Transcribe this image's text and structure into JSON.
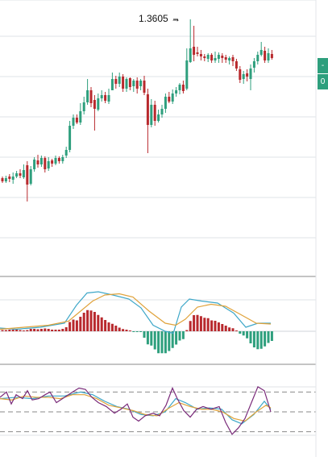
{
  "chart_data": {
    "type": "candlestick",
    "peak_annotation": "1.3605 →",
    "right_tags": [
      "-",
      "0"
    ],
    "colors": {
      "up": "#2e9f7d",
      "down": "#b8292d",
      "macd_line": "#3ea7c8",
      "signal_line": "#e0a23a",
      "stoch_k": "#7a2b7a",
      "stoch_d": "#e0a23a",
      "stoch_e": "#3ea7c8",
      "grid": "#dfe3e7",
      "level": "#8a8a8a"
    },
    "candles": [
      [
        221,
        225,
        219,
        227
      ],
      [
        225,
        221,
        218,
        227
      ],
      [
        219,
        222,
        216,
        226
      ],
      [
        223,
        219,
        214,
        228
      ],
      [
        219,
        215,
        212,
        221
      ],
      [
        215,
        218,
        210,
        221
      ],
      [
        220,
        211,
        204,
        222
      ],
      [
        205,
        229,
        200,
        250
      ],
      [
        228,
        210,
        206,
        230
      ],
      [
        210,
        198,
        195,
        213
      ],
      [
        199,
        204,
        192,
        208
      ],
      [
        204,
        196,
        193,
        207
      ],
      [
        196,
        210,
        194,
        214
      ],
      [
        209,
        200,
        195,
        212
      ],
      [
        199,
        203,
        197,
        207
      ],
      [
        203,
        196,
        193,
        205
      ],
      [
        196,
        200,
        194,
        203
      ],
      [
        200,
        195,
        192,
        203
      ],
      [
        193,
        186,
        182,
        196
      ],
      [
        186,
        156,
        150,
        189
      ],
      [
        156,
        146,
        142,
        160
      ],
      [
        146,
        152,
        142,
        154
      ],
      [
        152,
        138,
        128,
        155
      ],
      [
        138,
        127,
        120,
        142
      ],
      [
        127,
        112,
        98,
        130
      ],
      [
        112,
        128,
        108,
        133
      ],
      [
        124,
        135,
        118,
        162
      ],
      [
        136,
        122,
        116,
        138
      ],
      [
        122,
        118,
        112,
        126
      ],
      [
        118,
        125,
        114,
        128
      ],
      [
        126,
        118,
        110,
        129
      ],
      [
        112,
        98,
        90,
        112
      ],
      [
        98,
        104,
        94,
        110
      ],
      [
        104,
        95,
        90,
        108
      ],
      [
        95,
        110,
        92,
        114
      ],
      [
        110,
        98,
        96,
        114
      ],
      [
        97,
        108,
        96,
        112
      ],
      [
        107,
        100,
        98,
        114
      ],
      [
        100,
        110,
        96,
        116
      ],
      [
        107,
        100,
        98,
        112
      ],
      [
        100,
        115,
        94,
        118
      ],
      [
        117,
        155,
        110,
        190
      ],
      [
        155,
        130,
        123,
        158
      ],
      [
        130,
        150,
        125,
        156
      ],
      [
        150,
        142,
        136,
        152
      ],
      [
        142,
        135,
        130,
        146
      ],
      [
        135,
        120,
        116,
        140
      ],
      [
        120,
        126,
        114,
        128
      ],
      [
        126,
        116,
        111,
        129
      ],
      [
        116,
        112,
        108,
        120
      ],
      [
        112,
        105,
        103,
        117
      ],
      [
        105,
        113,
        100,
        116
      ],
      [
        110,
        75,
        60,
        112
      ],
      [
        77,
        60,
        24,
        78
      ],
      [
        58,
        68,
        32,
        76
      ],
      [
        65,
        67,
        58,
        70
      ],
      [
        67,
        70,
        62,
        75
      ],
      [
        70,
        72,
        67,
        76
      ],
      [
        73,
        68,
        66,
        77
      ],
      [
        68,
        75,
        66,
        78
      ],
      [
        75,
        72,
        64,
        78
      ],
      [
        73,
        68,
        65,
        78
      ],
      [
        69,
        72,
        66,
        78
      ],
      [
        71,
        74,
        68,
        78
      ],
      [
        75,
        72,
        70,
        80
      ],
      [
        71,
        76,
        68,
        82
      ],
      [
        76,
        85,
        73,
        88
      ],
      [
        86,
        99,
        82,
        103
      ],
      [
        98,
        92,
        88,
        104
      ],
      [
        91,
        95,
        86,
        101
      ],
      [
        98,
        85,
        80,
        112
      ],
      [
        84,
        76,
        72,
        90
      ],
      [
        76,
        68,
        64,
        80
      ],
      [
        68,
        62,
        52,
        70
      ],
      [
        63,
        75,
        58,
        78
      ],
      [
        75,
        66,
        60,
        78
      ],
      [
        67,
        72,
        62,
        74
      ]
    ],
    "macd": {
      "histogram": [
        -0.6,
        -0.6,
        -0.8,
        -0.8,
        -0.8,
        -0.6,
        -0.4,
        -0.6,
        -1.2,
        -1.2,
        -1.0,
        -1.2,
        -1.4,
        -1.2,
        -0.8,
        -0.8,
        -0.8,
        -1.2,
        -2.0,
        -4.6,
        -5.8,
        -5.4,
        -7.2,
        -9.2,
        -10.5,
        -10.3,
        -9.6,
        -8.1,
        -6.9,
        -5.6,
        -4.4,
        -3.7,
        -2.8,
        -1.8,
        -1.1,
        -0.8,
        -0.3,
        0.2,
        0.2,
        0.4,
        3.2,
        6.5,
        7.1,
        9.0,
        10.9,
        10.9,
        10.9,
        9.8,
        8.3,
        6.6,
        4.6,
        3.9,
        -0.6,
        -5.1,
        -8.0,
        -8.1,
        -7.5,
        -6.7,
        -6.5,
        -5.4,
        -5.2,
        -4.4,
        -3.6,
        -2.8,
        -1.9,
        -1.5,
        -0.3,
        1.2,
        2.1,
        3.5,
        6.0,
        8.0,
        8.9,
        8.7,
        7.5,
        5.8,
        4.8
      ],
      "line_points": [
        [
          0,
          -1.6
        ],
        [
          20,
          -1.0
        ],
        [
          50,
          -2.0
        ],
        [
          80,
          -4.0
        ],
        [
          95,
          -13.0
        ],
        [
          108,
          -19.0
        ],
        [
          122,
          -19.6
        ],
        [
          140,
          -18.0
        ],
        [
          160,
          -16.0
        ],
        [
          175,
          -11.6
        ],
        [
          190,
          -3.0
        ],
        [
          205,
          0.0
        ],
        [
          215,
          1.0
        ],
        [
          225,
          -12.0
        ],
        [
          235,
          -16.0
        ],
        [
          250,
          -15.0
        ],
        [
          270,
          -14.0
        ],
        [
          290,
          -9.0
        ],
        [
          305,
          -2.0
        ],
        [
          320,
          -4.0
        ],
        [
          336,
          -4.0
        ]
      ],
      "signal_points": [
        [
          0,
          -1.0
        ],
        [
          30,
          -2.0
        ],
        [
          60,
          -3.0
        ],
        [
          85,
          -5.0
        ],
        [
          100,
          -10.0
        ],
        [
          115,
          -15.0
        ],
        [
          130,
          -18.0
        ],
        [
          148,
          -18.6
        ],
        [
          165,
          -17.0
        ],
        [
          185,
          -10.0
        ],
        [
          205,
          -4.0
        ],
        [
          218,
          -3.0
        ],
        [
          230,
          -6.0
        ],
        [
          245,
          -12.0
        ],
        [
          262,
          -13.4
        ],
        [
          280,
          -12.4
        ],
        [
          300,
          -8.0
        ],
        [
          318,
          -4.0
        ],
        [
          336,
          -3.6
        ]
      ]
    },
    "stochastic": {
      "levels": [
        80,
        50,
        20
      ],
      "k_points": [
        [
          0,
          72
        ],
        [
          8,
          80
        ],
        [
          14,
          62
        ],
        [
          20,
          76
        ],
        [
          28,
          70
        ],
        [
          34,
          82
        ],
        [
          40,
          68
        ],
        [
          48,
          70
        ],
        [
          56,
          76
        ],
        [
          62,
          80
        ],
        [
          70,
          64
        ],
        [
          80,
          72
        ],
        [
          90,
          80
        ],
        [
          98,
          86
        ],
        [
          106,
          84
        ],
        [
          114,
          72
        ],
        [
          122,
          64
        ],
        [
          132,
          58
        ],
        [
          142,
          48
        ],
        [
          150,
          54
        ],
        [
          158,
          62
        ],
        [
          165,
          42
        ],
        [
          172,
          36
        ],
        [
          180,
          44
        ],
        [
          190,
          48
        ],
        [
          198,
          44
        ],
        [
          206,
          60
        ],
        [
          214,
          86
        ],
        [
          220,
          70
        ],
        [
          228,
          52
        ],
        [
          236,
          42
        ],
        [
          244,
          54
        ],
        [
          252,
          58
        ],
        [
          262,
          54
        ],
        [
          272,
          58
        ],
        [
          280,
          34
        ],
        [
          288,
          16
        ],
        [
          296,
          26
        ],
        [
          304,
          40
        ],
        [
          312,
          64
        ],
        [
          320,
          88
        ],
        [
          328,
          82
        ],
        [
          336,
          50
        ]
      ],
      "d_points": [
        [
          0,
          70
        ],
        [
          15,
          68
        ],
        [
          30,
          74
        ],
        [
          45,
          72
        ],
        [
          60,
          72
        ],
        [
          75,
          70
        ],
        [
          90,
          76
        ],
        [
          105,
          76
        ],
        [
          120,
          70
        ],
        [
          135,
          60
        ],
        [
          150,
          56
        ],
        [
          165,
          52
        ],
        [
          180,
          46
        ],
        [
          195,
          44
        ],
        [
          210,
          56
        ],
        [
          222,
          64
        ],
        [
          236,
          58
        ],
        [
          250,
          54
        ],
        [
          262,
          54
        ],
        [
          276,
          50
        ],
        [
          290,
          40
        ],
        [
          304,
          36
        ],
        [
          318,
          50
        ],
        [
          330,
          60
        ],
        [
          336,
          56
        ]
      ],
      "e_points": [
        [
          0,
          70
        ],
        [
          20,
          72
        ],
        [
          40,
          70
        ],
        [
          60,
          74
        ],
        [
          80,
          74
        ],
        [
          100,
          80
        ],
        [
          115,
          76
        ],
        [
          130,
          66
        ],
        [
          145,
          58
        ],
        [
          160,
          54
        ],
        [
          175,
          46
        ],
        [
          190,
          44
        ],
        [
          205,
          50
        ],
        [
          218,
          70
        ],
        [
          230,
          64
        ],
        [
          245,
          54
        ],
        [
          260,
          56
        ],
        [
          275,
          54
        ],
        [
          288,
          38
        ],
        [
          300,
          32
        ],
        [
          315,
          46
        ],
        [
          328,
          66
        ],
        [
          336,
          54
        ]
      ]
    }
  }
}
